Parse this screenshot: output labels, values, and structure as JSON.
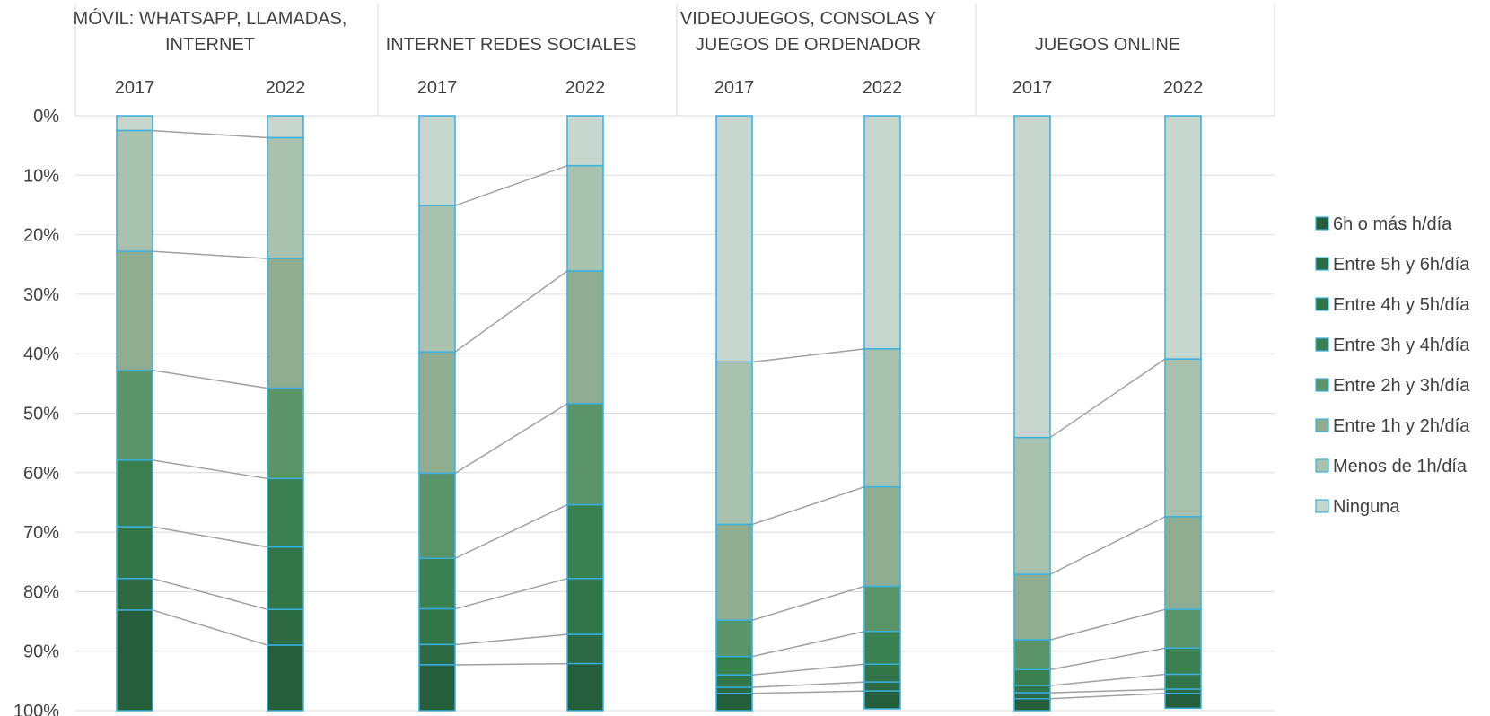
{
  "chart_data": {
    "type": "bar",
    "stacked": true,
    "percent_stacked": true,
    "y_axis_reversed": true,
    "ylim": [
      0,
      100
    ],
    "y_ticks": [
      "0%",
      "10%",
      "20%",
      "30%",
      "40%",
      "50%",
      "60%",
      "70%",
      "80%",
      "90%",
      "100%"
    ],
    "legend_position": "right",
    "grid": true,
    "connector_lines": true,
    "series_order_bottom_to_top": [
      "6h o más h/día",
      "Entre 5h y 6h/día",
      "Entre 4h y 5h/día",
      "Entre 3h y 4h/día",
      "Entre 2h y 3h/día",
      "Entre 1h y 2h/día",
      "Menos de 1h/día",
      "Ninguna"
    ],
    "legend": [
      {
        "name": "6h o más h/día",
        "color": "#255e3b"
      },
      {
        "name": "Entre 5h y 6h/día",
        "color": "#2b6a42"
      },
      {
        "name": "Entre 4h y 5h/día",
        "color": "#317549"
      },
      {
        "name": "Entre 3h y 4h/día",
        "color": "#3a8050"
      },
      {
        "name": "Entre 2h y 3h/día",
        "color": "#5c9469"
      },
      {
        "name": "Entre 1h y 2h/día",
        "color": "#8fad91"
      },
      {
        "name": "Menos de 1h/día",
        "color": "#a9c2af"
      },
      {
        "name": "Ninguna",
        "color": "#c6d6cc"
      }
    ],
    "groups": [
      {
        "title_lines": [
          "MÓVIL: WHATSAPP, LLAMADAS,",
          "INTERNET"
        ],
        "years": [
          "2017",
          "2022"
        ],
        "values": [
          [
            16.9,
            5.3,
            8.7,
            11.2,
            15.1,
            20.0,
            20.3,
            2.5
          ],
          [
            11.0,
            6.0,
            10.5,
            11.5,
            15.2,
            21.8,
            20.3,
            3.7
          ]
        ]
      },
      {
        "title_lines": [
          "INTERNET REDES SOCIALES"
        ],
        "years": [
          "2017",
          "2022"
        ],
        "values": [
          [
            7.7,
            3.4,
            6.0,
            8.5,
            14.3,
            20.4,
            24.6,
            15.1
          ],
          [
            7.9,
            4.9,
            9.4,
            12.4,
            17.0,
            22.3,
            17.7,
            8.4
          ]
        ]
      },
      {
        "title_lines": [
          "VIDEOJUEGOS, CONSOLAS Y",
          "JUEGOS DE ORDENADOR"
        ],
        "years": [
          "2017",
          "2022"
        ],
        "values": [
          [
            2.9,
            1.0,
            2.1,
            3.1,
            6.1,
            16.1,
            27.3,
            41.4
          ],
          [
            3.0,
            1.5,
            3.0,
            5.5,
            7.6,
            16.7,
            23.2,
            39.2
          ]
        ]
      },
      {
        "title_lines": [
          "JUEGOS ONLINE"
        ],
        "years": [
          "2017",
          "2022"
        ],
        "values": [
          [
            2.0,
            1.0,
            1.2,
            2.7,
            5.0,
            11.0,
            23.0,
            54.1
          ],
          [
            2.5,
            0.7,
            2.5,
            4.4,
            6.5,
            15.6,
            26.5,
            40.9
          ]
        ]
      }
    ]
  }
}
